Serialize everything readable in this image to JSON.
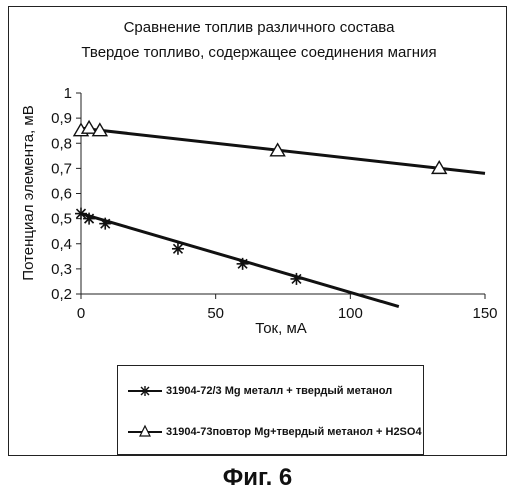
{
  "figure_caption": "Фиг. 6",
  "chart_data": {
    "type": "line",
    "title": "Сравнение топлив различного состава",
    "subtitle": "Твердое топливо, содержащее соединения магния",
    "xlabel": "Ток, мА",
    "ylabel": "Потенциал элемента, мВ",
    "xlim": [
      0,
      150
    ],
    "ylim": [
      0.2,
      1
    ],
    "xticks": [
      "0",
      "50",
      "100",
      "150"
    ],
    "yticks": [
      "0,2",
      "0,3",
      "0,4",
      "0,5",
      "0,6",
      "0,7",
      "0,8",
      "0,9",
      "1"
    ],
    "grid": false,
    "legend_position": "bottom",
    "series": [
      {
        "name": "31904-72/3  Mg металл + твердый метанол",
        "marker": "asterisk",
        "points": [
          [
            0,
            0.52
          ],
          [
            3,
            0.5
          ],
          [
            9,
            0.48
          ],
          [
            36,
            0.38
          ],
          [
            60,
            0.32
          ],
          [
            80,
            0.26
          ]
        ],
        "trend": [
          [
            0,
            0.52
          ],
          [
            118,
            0.15
          ]
        ]
      },
      {
        "name": "31904-73повтор Mg+твердый метанол + H2SO4",
        "marker": "triangle",
        "points": [
          [
            0,
            0.85
          ],
          [
            3,
            0.86
          ],
          [
            7,
            0.85
          ],
          [
            73,
            0.77
          ],
          [
            133,
            0.7
          ]
        ],
        "trend": [
          [
            0,
            0.86
          ],
          [
            150,
            0.68
          ]
        ]
      }
    ]
  }
}
